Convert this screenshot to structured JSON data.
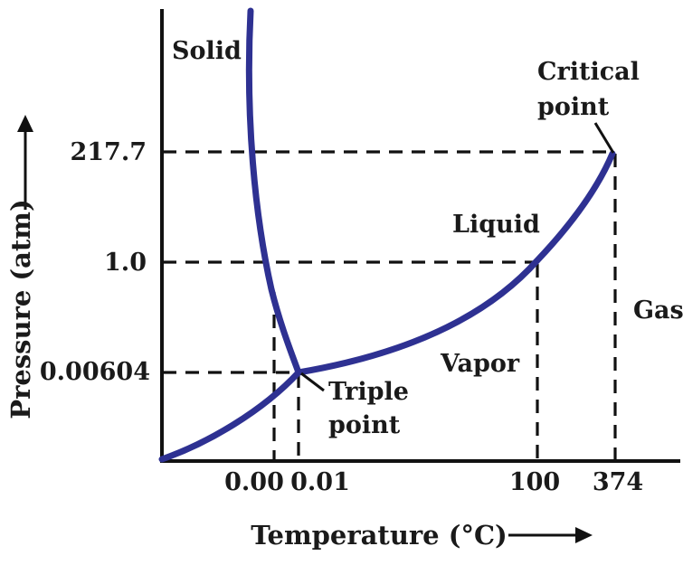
{
  "diagram": {
    "type": "phase-diagram",
    "axes": {
      "x_title": "Temperature (°C)",
      "y_title": "Pressure (atm)",
      "x_ticks": [
        "0.00",
        "0.01",
        "100",
        "374"
      ],
      "y_ticks": [
        "217.7",
        "1.0",
        "0.00604"
      ]
    },
    "regions": {
      "solid": "Solid",
      "liquid": "Liquid",
      "vapor": "Vapor",
      "gas": "Gas"
    },
    "points": {
      "critical": {
        "line1": "Critical",
        "line2": "point",
        "temperature": 374,
        "pressure": 217.7
      },
      "triple": {
        "line1": "Triple",
        "line2": "point",
        "temperature": 0.01,
        "pressure": 0.00604
      }
    },
    "colors": {
      "curve": "#2e3192",
      "axis": "#111111",
      "text": "#1a1a1a"
    }
  }
}
